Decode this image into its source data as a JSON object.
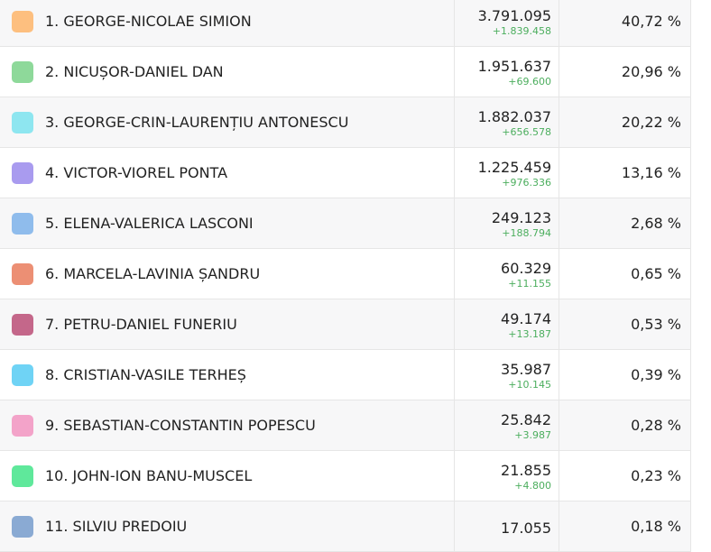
{
  "table": {
    "rows": [
      {
        "color": "#fdbf7f",
        "name": "1. GEORGE-NICOLAE SIMION",
        "votes": "3.791.095",
        "change": "+1.839.458",
        "percent": "40,72 %"
      },
      {
        "color": "#8ed99a",
        "name": "2. NICUȘOR-DANIEL DAN",
        "votes": "1.951.637",
        "change": "+69.600",
        "percent": "20,96 %"
      },
      {
        "color": "#8ee6f0",
        "name": "3. GEORGE-CRIN-LAURENȚIU ANTONESCU",
        "votes": "1.882.037",
        "change": "+656.578",
        "percent": "20,22 %"
      },
      {
        "color": "#a99bef",
        "name": "4. VICTOR-VIOREL PONTA",
        "votes": "1.225.459",
        "change": "+976.336",
        "percent": "13,16 %"
      },
      {
        "color": "#8fbcec",
        "name": "5. ELENA-VALERICA LASCONI",
        "votes": "249.123",
        "change": "+188.794",
        "percent": "2,68 %"
      },
      {
        "color": "#ec8f74",
        "name": "6. MARCELA-LAVINIA ȘANDRU",
        "votes": "60.329",
        "change": "+11.155",
        "percent": "0,65 %"
      },
      {
        "color": "#c4678a",
        "name": "7. PETRU-DANIEL FUNERIU",
        "votes": "49.174",
        "change": "+13.187",
        "percent": "0,53 %"
      },
      {
        "color": "#6fd3f5",
        "name": "8. CRISTIAN-VASILE TERHEȘ",
        "votes": "35.987",
        "change": "+10.145",
        "percent": "0,39 %"
      },
      {
        "color": "#f3a3c9",
        "name": "9. SEBASTIAN-CONSTANTIN POPESCU",
        "votes": "25.842",
        "change": "+3.987",
        "percent": "0,28 %"
      },
      {
        "color": "#5fe89b",
        "name": "10. JOHN-ION BANU-MUSCEL",
        "votes": "21.855",
        "change": "+4.800",
        "percent": "0,23 %"
      },
      {
        "color": "#8aaad3",
        "name": "11. SILVIU PREDOIU",
        "votes": "17.055",
        "percent": "0,18 %"
      }
    ]
  }
}
